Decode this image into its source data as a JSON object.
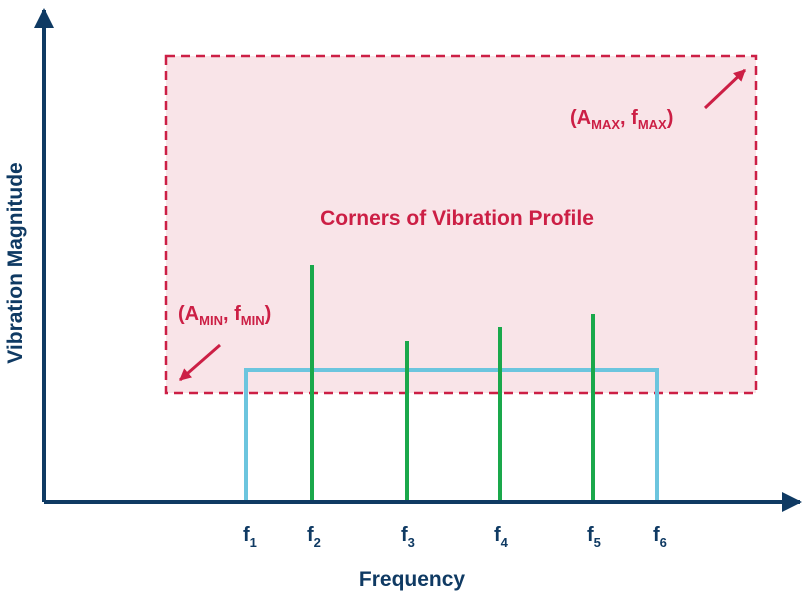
{
  "diagram": {
    "x_axis_label": "Frequency",
    "y_axis_label": "Vibration Magnitude",
    "profile_label": "Corners of Vibration Profile",
    "corner_max": {
      "a_main": "A",
      "a_sub": "MAX",
      "f_main": "f",
      "f_sub": "MAX"
    },
    "corner_min": {
      "a_main": "A",
      "a_sub": "MIN",
      "f_main": "f",
      "f_sub": "MIN"
    },
    "frequency_ticks": [
      {
        "main": "f",
        "sub": "1"
      },
      {
        "main": "f",
        "sub": "2"
      },
      {
        "main": "f",
        "sub": "3"
      },
      {
        "main": "f",
        "sub": "4"
      },
      {
        "main": "f",
        "sub": "5"
      },
      {
        "main": "f",
        "sub": "6"
      }
    ],
    "colors": {
      "axis": "#0f3a63",
      "profile": "#cc1f45",
      "profile_fill": "#f9e4e8",
      "band": "#6cc5de",
      "spike": "#1aa84b"
    }
  }
}
